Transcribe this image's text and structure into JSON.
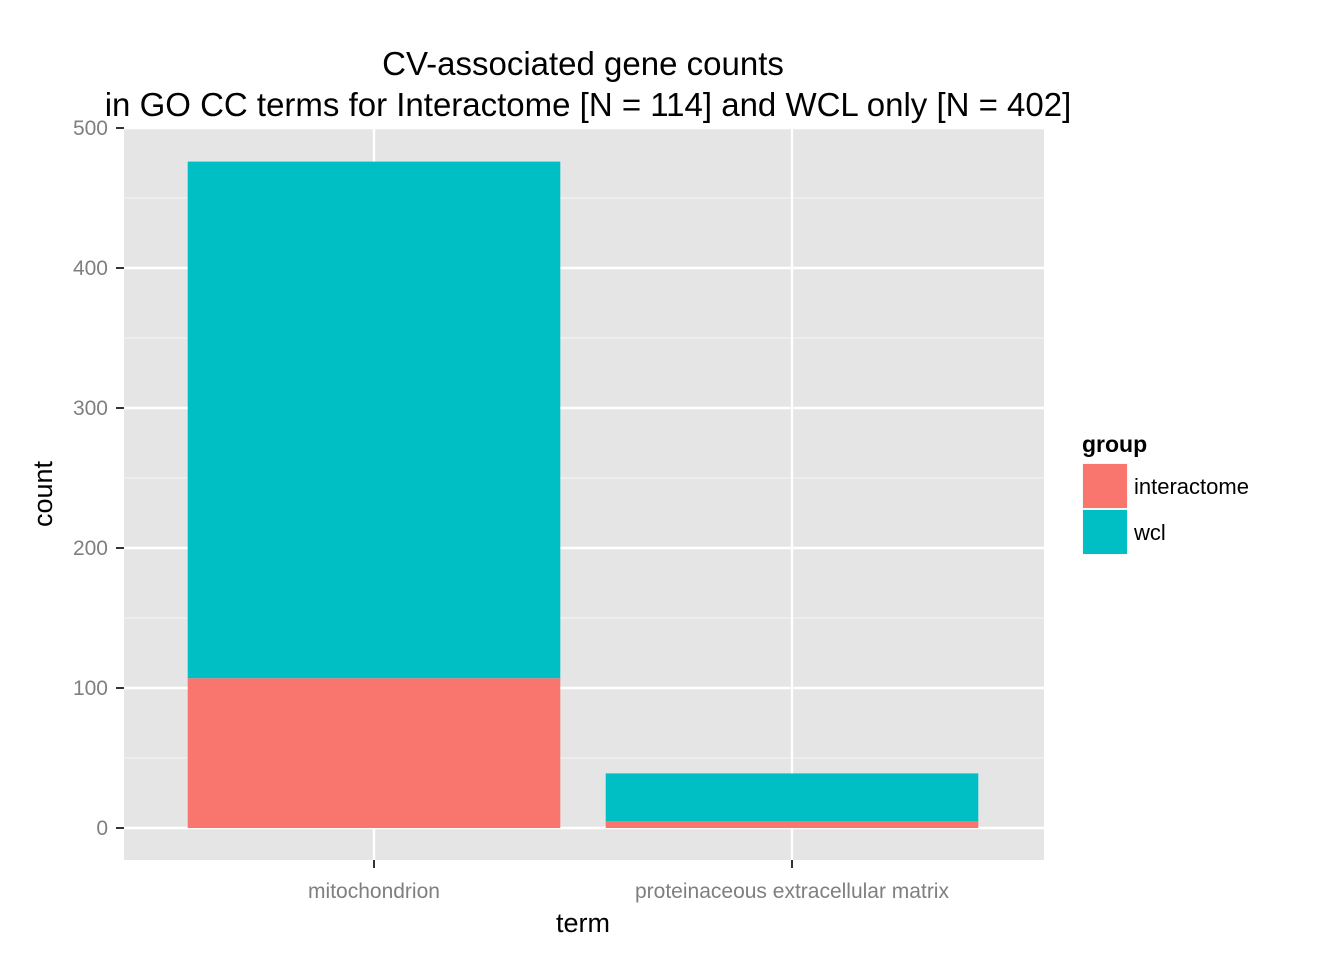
{
  "chart_data": {
    "type": "bar",
    "stacked": true,
    "title": "CV-associated gene counts",
    "subtitle": "in GO CC terms for Interactome [N = 114] and WCL only [N = 402]",
    "xlabel": "term",
    "ylabel": "count",
    "categories": [
      "mitochondrion",
      "proteinaceous extracellular matrix"
    ],
    "series": [
      {
        "name": "interactome",
        "values": [
          107,
          5
        ],
        "color": "#F8766D"
      },
      {
        "name": "wcl",
        "values": [
          369,
          34
        ],
        "color": "#00BFC4"
      }
    ],
    "ylim": [
      0,
      500
    ],
    "y_ticks": [
      0,
      100,
      200,
      300,
      400,
      500
    ],
    "grid": true,
    "legend": {
      "title": "group",
      "position": "right"
    }
  }
}
